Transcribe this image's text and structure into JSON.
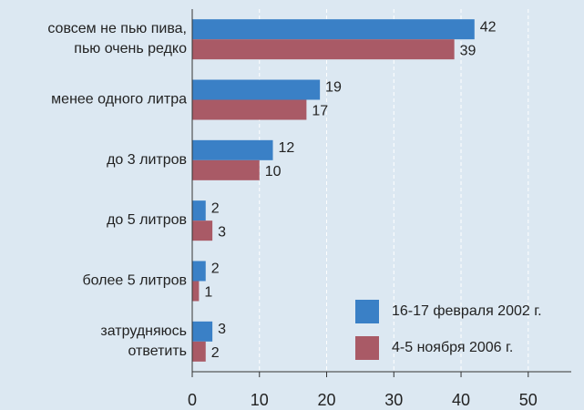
{
  "chart_data": {
    "type": "bar",
    "orientation": "horizontal",
    "categories": [
      [
        "совсем не пью пива,",
        "пью очень редко"
      ],
      [
        "менее одного литра"
      ],
      [
        "до 3 литров"
      ],
      [
        "до 5 литров"
      ],
      [
        "более 5 литров"
      ],
      [
        "затрудняюсь",
        "ответить"
      ]
    ],
    "series": [
      {
        "name": "16-17 февраля 2002 г.",
        "color": "#3a80c6",
        "values": [
          42,
          19,
          12,
          2,
          2,
          3
        ]
      },
      {
        "name": "4-5 ноября 2006 г.",
        "color": "#a95a66",
        "values": [
          39,
          17,
          10,
          3,
          1,
          2
        ]
      }
    ],
    "xlim": [
      0,
      56.4
    ],
    "xticks": [
      0,
      10,
      20,
      30,
      40,
      50
    ],
    "grid": true,
    "legend": "lower right"
  }
}
